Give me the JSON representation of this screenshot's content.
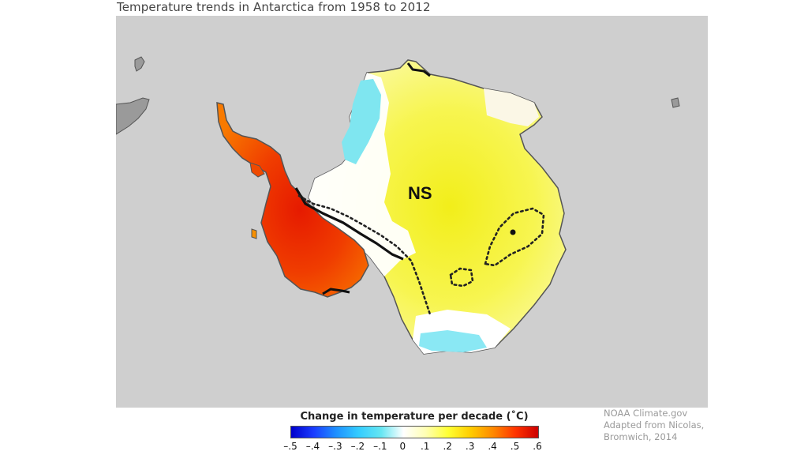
{
  "title": "Temperature trends in Antarctica from 1958 to 2012",
  "map": {
    "region_label": "NS",
    "background_color": "#cfcfcf",
    "land_outside_color": "#9a9a9a"
  },
  "legend": {
    "title": "Change in temperature per decade (˚C)",
    "ticks": [
      "–.5",
      "–.4",
      "–.3",
      "–.2",
      "–.1",
      "0",
      ".1",
      ".2",
      ".3",
      ".4",
      ".5",
      ".6"
    ],
    "colors": [
      "#0000cc",
      "#1a3cff",
      "#1e90ff",
      "#33ccff",
      "#66e6f2",
      "#ffffff",
      "#ffffb3",
      "#ffff33",
      "#ffcc00",
      "#ff8800",
      "#ff3300",
      "#cc0000"
    ]
  },
  "credit": {
    "line1": "NOAA Climate.gov",
    "line2": "Adapted from Nicolas,",
    "line3": "Bromwich, 2014"
  }
}
